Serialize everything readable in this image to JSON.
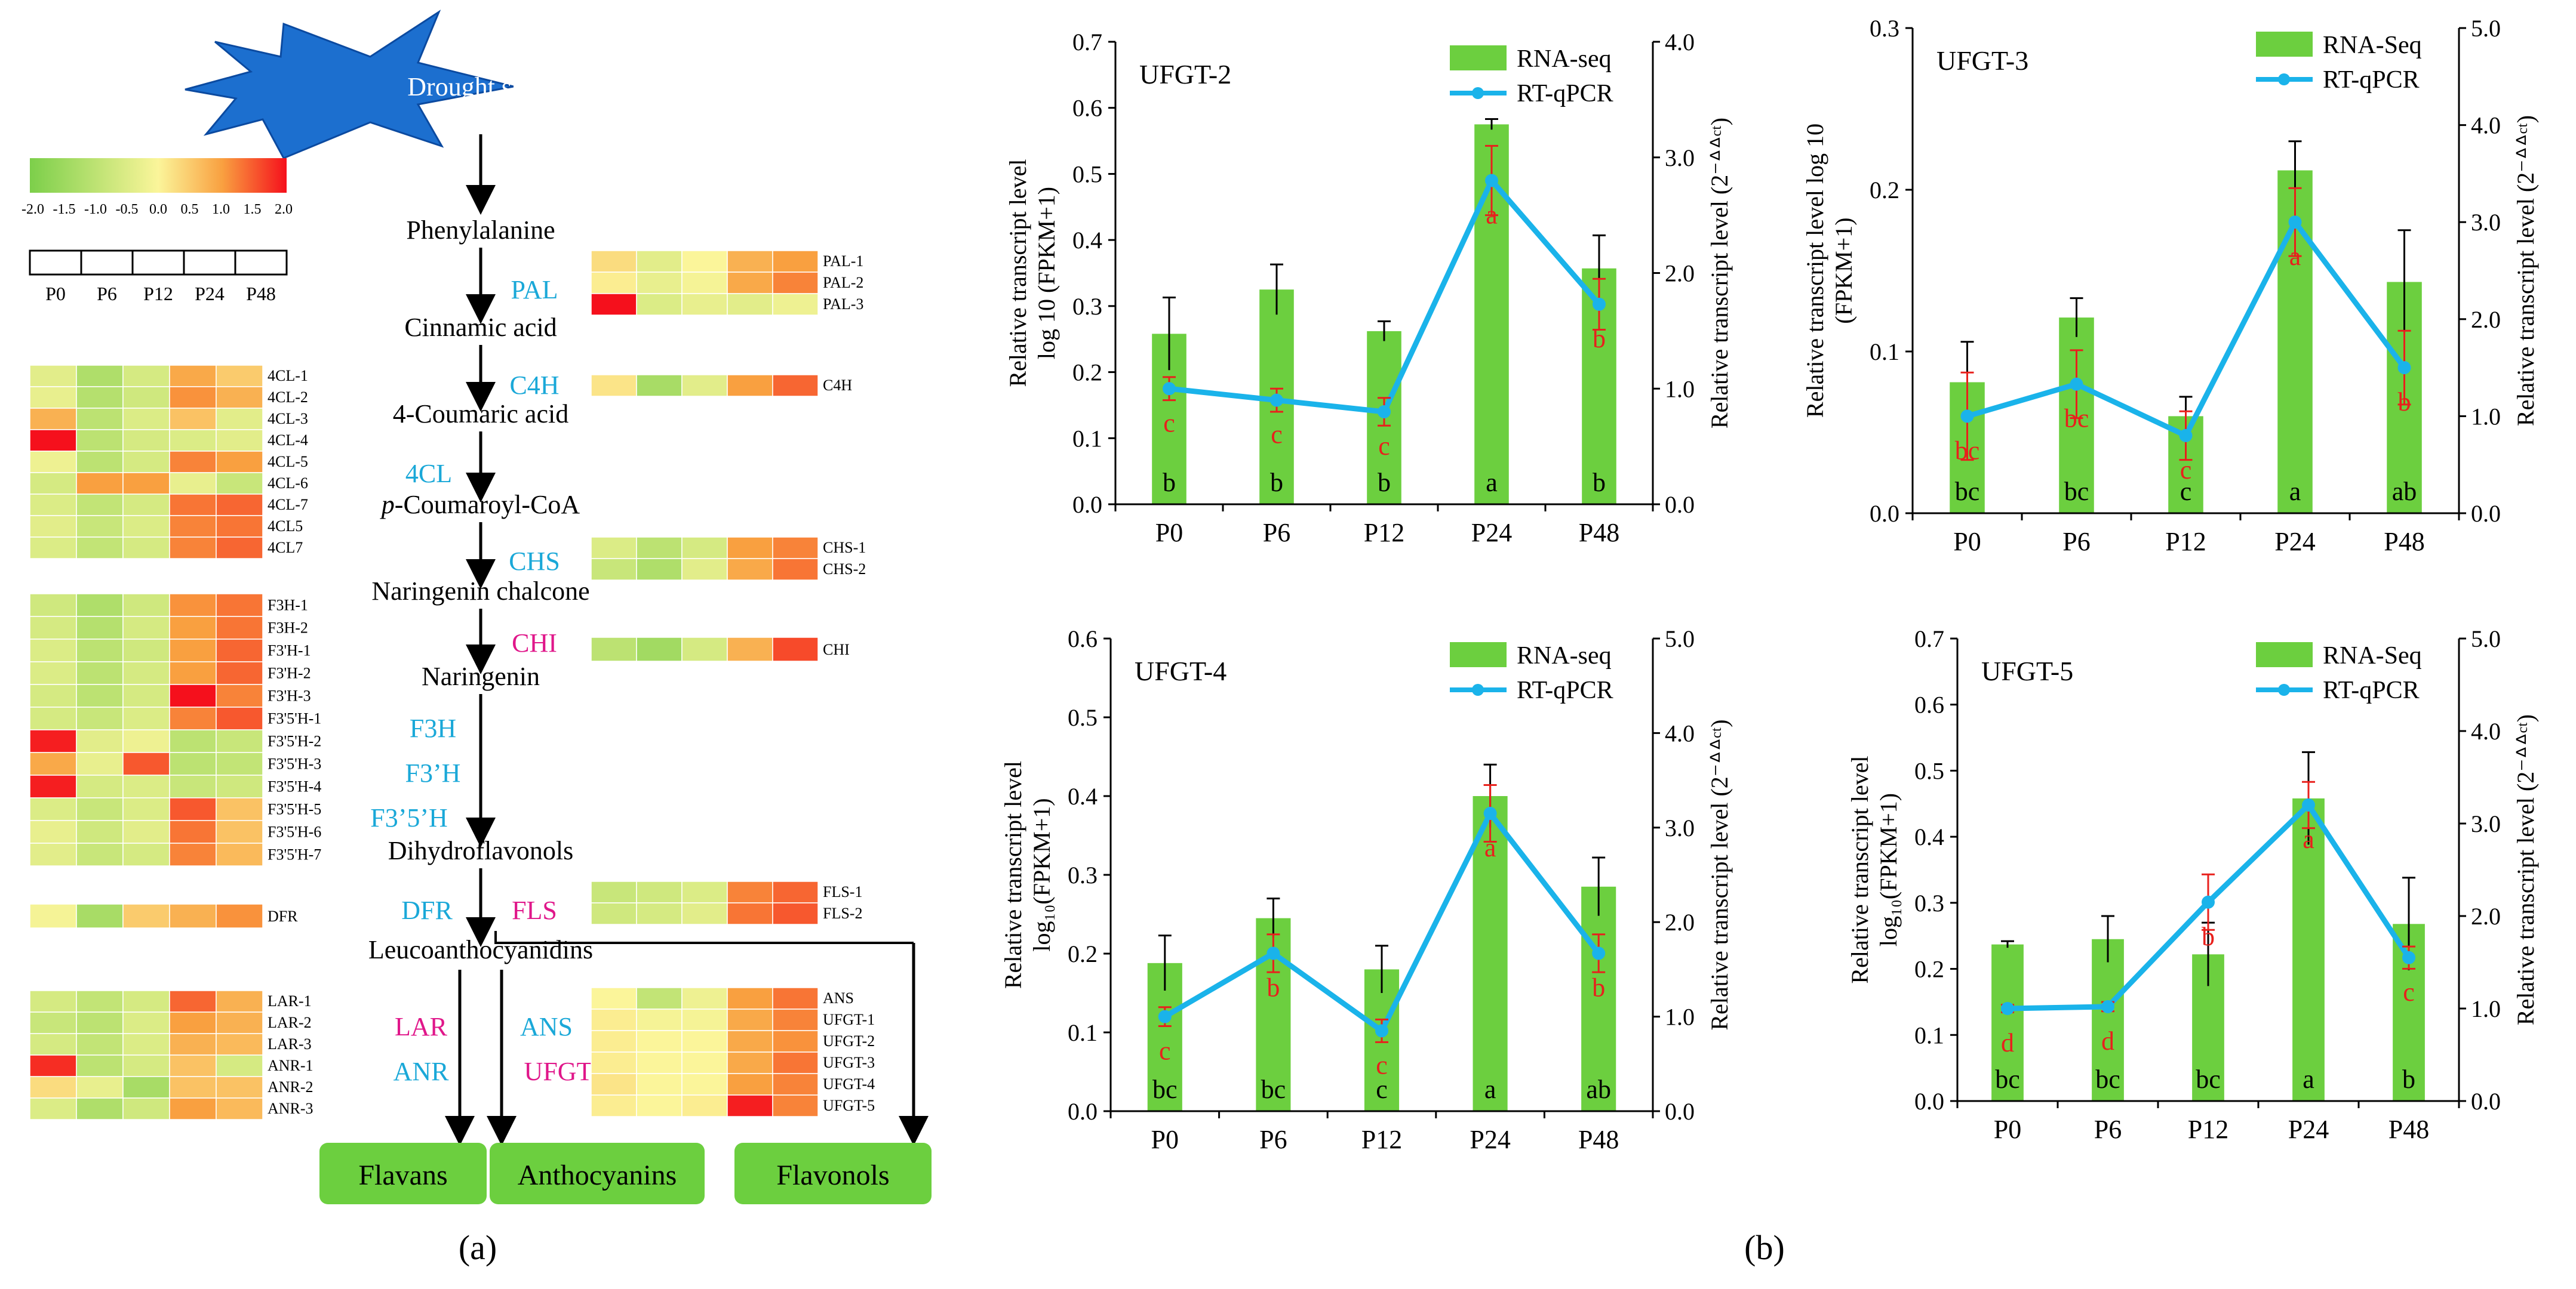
{
  "colors": {
    "bar": "#6ccf3f",
    "line": "#1ab3ea",
    "letter_red": "#e8201c",
    "pathway_box": "#6ccf3f",
    "cyan_label": "#1aa8d8",
    "magenta_label": "#e0178a",
    "star": "#1c6fcf"
  },
  "panel_a": {
    "label": "(a)",
    "stress": "Drought stress",
    "scale_ticks": [
      "-2.0",
      "-1.5",
      "-1.0",
      "-0.5",
      "0.0",
      "0.5",
      "1.0",
      "1.5",
      "2.0"
    ],
    "stages": [
      "P0",
      "P6",
      "P12",
      "P24",
      "P48"
    ],
    "metabolites": [
      "Phenylalanine",
      "Cinnamic acid",
      "4-Coumaric acid",
      "p-Coumaroyl-CoA",
      "Naringenin chalcone",
      "Naringenin",
      "Dihydroflavonols",
      "Leucoanthocyanidins"
    ],
    "enzymes": [
      "PAL",
      "C4H",
      "4CL",
      "CHS",
      "CHI",
      "F3H",
      "F3’H",
      "F3’5’H",
      "DFR",
      "FLS",
      "LAR",
      "ANS",
      "ANR",
      "UFGT"
    ],
    "products": [
      "Flavans",
      "Anthocyanins",
      "Flavonols"
    ],
    "heatmaps": [
      {
        "genes": [
          "PAL-1",
          "PAL-2",
          "PAL-3"
        ],
        "values": [
          [
            0.3,
            -0.4,
            0.0,
            0.8,
            1.0
          ],
          [
            0.1,
            -0.3,
            -0.1,
            0.9,
            1.2
          ],
          [
            2.0,
            -0.5,
            -0.3,
            -0.4,
            -0.2
          ]
        ]
      },
      {
        "genes": [
          "C4H"
        ],
        "values": [
          [
            0.2,
            -1.3,
            -0.4,
            1.0,
            1.4
          ]
        ]
      },
      {
        "genes": [
          "4CL-1",
          "4CL-2",
          "4CL-3",
          "4CL-4",
          "4CL-5",
          "4CL-6",
          "4CL-7",
          "4CL5",
          "4CL7"
        ],
        "values": [
          [
            -0.4,
            -1.2,
            -0.6,
            0.9,
            0.5
          ],
          [
            -0.3,
            -1.1,
            -0.7,
            1.1,
            0.8
          ],
          [
            0.8,
            -1.0,
            -0.5,
            0.6,
            -0.4
          ],
          [
            2.0,
            -1.0,
            -0.6,
            -0.5,
            -0.4
          ],
          [
            -0.2,
            -1.0,
            -0.6,
            1.2,
            1.0
          ],
          [
            -0.6,
            1.0,
            1.0,
            -0.3,
            -0.8
          ],
          [
            -0.5,
            -0.9,
            -0.6,
            1.3,
            1.4
          ],
          [
            -0.4,
            -0.8,
            -0.5,
            1.2,
            1.3
          ],
          [
            -0.5,
            -0.9,
            -0.6,
            1.2,
            1.4
          ]
        ]
      },
      {
        "genes": [
          "CHS-1",
          "CHS-2"
        ],
        "values": [
          [
            -0.5,
            -1.0,
            -0.6,
            1.0,
            1.2
          ],
          [
            -0.8,
            -1.2,
            -0.4,
            0.9,
            1.3
          ]
        ]
      },
      {
        "genes": [
          "CHI"
        ],
        "values": [
          [
            -1.0,
            -1.4,
            -0.6,
            0.8,
            1.6
          ]
        ]
      },
      {
        "genes": [
          "F3H-1",
          "F3H-2",
          "F3'H-1",
          "F3'H-2",
          "F3'H-3",
          "F3'5'H-1",
          "F3'5'H-2",
          "F3'5'H-3",
          "F3'5'H-4",
          "F3'5'H-5",
          "F3'5'H-6",
          "F3'5'H-7"
        ],
        "values": [
          [
            -0.7,
            -1.2,
            -0.7,
            1.1,
            1.3
          ],
          [
            -0.6,
            -1.1,
            -0.6,
            1.0,
            1.3
          ],
          [
            -0.5,
            -1.0,
            -0.7,
            1.0,
            1.4
          ],
          [
            -0.5,
            -1.0,
            -0.6,
            1.0,
            1.4
          ],
          [
            -0.6,
            -1.0,
            -0.6,
            2.0,
            1.2
          ],
          [
            -0.6,
            -0.8,
            -0.5,
            1.2,
            1.5
          ],
          [
            1.9,
            -0.4,
            -0.2,
            -1.0,
            -0.8
          ],
          [
            0.9,
            -0.3,
            1.5,
            -1.0,
            -0.9
          ],
          [
            1.9,
            -0.6,
            -0.5,
            -0.8,
            -0.7
          ],
          [
            -0.5,
            -0.8,
            -0.5,
            1.5,
            0.6
          ],
          [
            -0.3,
            -0.7,
            -0.4,
            1.3,
            0.6
          ],
          [
            -0.4,
            -0.8,
            -0.6,
            1.2,
            0.7
          ]
        ]
      },
      {
        "genes": [
          "DFR"
        ],
        "values": [
          [
            -0.1,
            -1.3,
            0.5,
            0.8,
            1.1
          ]
        ]
      },
      {
        "genes": [
          "FLS-1",
          "FLS-2"
        ],
        "values": [
          [
            -0.8,
            -0.7,
            -0.5,
            1.2,
            1.4
          ],
          [
            -0.7,
            -0.6,
            -0.4,
            1.3,
            1.5
          ]
        ]
      },
      {
        "genes": [
          "LAR-1",
          "LAR-2",
          "LAR-3",
          "ANR-1",
          "ANR-2",
          "ANR-3"
        ],
        "values": [
          [
            -0.6,
            -0.9,
            -0.6,
            1.4,
            0.8
          ],
          [
            -0.8,
            -1.0,
            -0.5,
            1.0,
            0.8
          ],
          [
            -0.6,
            -0.9,
            -0.5,
            0.8,
            0.7
          ],
          [
            1.8,
            -1.0,
            -0.6,
            0.6,
            -0.6
          ],
          [
            0.3,
            -0.3,
            -1.3,
            0.6,
            0.6
          ],
          [
            -0.5,
            -1.2,
            -0.7,
            1.0,
            0.7
          ]
        ]
      },
      {
        "genes": [
          "ANS",
          "UFGT-1",
          "UFGT-2",
          "UFGT-3",
          "UFGT-4",
          "UFGT-5"
        ],
        "values": [
          [
            0.0,
            -0.9,
            -0.2,
            1.0,
            1.3
          ],
          [
            0.1,
            -0.1,
            -0.1,
            0.9,
            1.2
          ],
          [
            0.1,
            0.0,
            0.0,
            0.9,
            1.1
          ],
          [
            0.1,
            0.0,
            0.0,
            0.9,
            1.3
          ],
          [
            0.2,
            0.0,
            0.0,
            1.0,
            1.2
          ],
          [
            0.1,
            0.0,
            0.1,
            1.9,
            1.2
          ]
        ]
      }
    ]
  },
  "panel_b": {
    "label": "(b)"
  },
  "chart_data": [
    {
      "type": "bar+line",
      "title": "UFGT-2",
      "categories": [
        "P0",
        "P6",
        "P12",
        "P24",
        "P48"
      ],
      "series": [
        {
          "name": "RNA-seq",
          "axis": "left",
          "values": [
            0.258,
            0.325,
            0.262,
            0.575,
            0.357
          ],
          "errors": [
            0.055,
            0.038,
            0.015,
            0.008,
            0.05
          ],
          "letters": [
            "b",
            "b",
            "b",
            "a",
            "b"
          ]
        },
        {
          "name": "RT-qPCR",
          "axis": "right",
          "values": [
            1.0,
            0.9,
            0.8,
            2.8,
            1.73
          ],
          "errors": [
            0.1,
            0.1,
            0.12,
            0.3,
            0.22
          ],
          "letters": [
            "c",
            "c",
            "c",
            "a",
            "b"
          ]
        }
      ],
      "ylabel": "Relative transcript level",
      "ylabel2": "log 10 (FPKM+1)",
      "y2label": "Relative transcript  level (2⁻ᐞᐞᶜᵗ)",
      "ylim": [
        0,
        0.7
      ],
      "yticks": [
        "0.0",
        "0.1",
        "0.2",
        "0.3",
        "0.4",
        "0.5",
        "0.6",
        "0.7"
      ],
      "y2lim": [
        0,
        4.0
      ],
      "y2ticks": [
        "0.0",
        "1.0",
        "2.0",
        "3.0",
        "4.0"
      ]
    },
    {
      "type": "bar+line",
      "title": "UFGT-3",
      "categories": [
        "P0",
        "P6",
        "P12",
        "P24",
        "P48"
      ],
      "series": [
        {
          "name": "RNA-Seq",
          "axis": "left",
          "values": [
            0.081,
            0.121,
            0.06,
            0.212,
            0.143
          ],
          "errors": [
            0.025,
            0.012,
            0.012,
            0.018,
            0.032
          ],
          "letters": [
            "bc",
            "bc",
            "c",
            "a",
            "ab"
          ]
        },
        {
          "name": "RT-qPCR",
          "axis": "right",
          "values": [
            1.0,
            1.33,
            0.8,
            3.0,
            1.5
          ],
          "errors": [
            0.45,
            0.35,
            0.25,
            0.35,
            0.38
          ],
          "letters": [
            "bc",
            "bc",
            "c",
            "a",
            "b"
          ]
        }
      ],
      "ylabel": "Relative transcript level log 10",
      "ylabel2": "(FPKM+1)",
      "y2label": "Relative transcript  level (2⁻ᐞᐞᶜᵗ)",
      "ylim": [
        0,
        0.3
      ],
      "yticks": [
        "0.0",
        "0.1",
        "0.2",
        "0.3"
      ],
      "y2lim": [
        0,
        5.0
      ],
      "y2ticks": [
        "0.0",
        "1.0",
        "2.0",
        "3.0",
        "4.0",
        "5.0"
      ]
    },
    {
      "type": "bar+line",
      "title": "UFGT-4",
      "categories": [
        "P0",
        "P6",
        "P12",
        "P24",
        "P48"
      ],
      "series": [
        {
          "name": "RNA-seq",
          "axis": "left",
          "values": [
            0.188,
            0.245,
            0.18,
            0.4,
            0.285
          ],
          "errors": [
            0.035,
            0.025,
            0.03,
            0.04,
            0.037
          ],
          "letters": [
            "bc",
            "bc",
            "c",
            "a",
            "ab"
          ]
        },
        {
          "name": "RT-qPCR",
          "axis": "right",
          "values": [
            1.0,
            1.67,
            0.85,
            3.15,
            1.67
          ],
          "errors": [
            0.1,
            0.2,
            0.12,
            0.3,
            0.2
          ],
          "letters": [
            "c",
            "b",
            "c",
            "a",
            "b"
          ]
        }
      ],
      "ylabel": "Relative transcript level",
      "ylabel2": "log₁₀(FPKM+1)",
      "y2label": "Relative transcript  level (2⁻ᐞᐞᶜᵗ)",
      "ylim": [
        0,
        0.6
      ],
      "yticks": [
        "0.0",
        "0.1",
        "0.2",
        "0.3",
        "0.4",
        "0.5",
        "0.6"
      ],
      "y2lim": [
        0,
        5.0
      ],
      "y2ticks": [
        "0.0",
        "1.0",
        "2.0",
        "3.0",
        "4.0",
        "5.0"
      ]
    },
    {
      "type": "bar+line",
      "title": "UFGT-5",
      "categories": [
        "P0",
        "P6",
        "P12",
        "P24",
        "P48"
      ],
      "series": [
        {
          "name": "RNA-Seq",
          "axis": "left",
          "values": [
            0.237,
            0.245,
            0.222,
            0.458,
            0.268
          ],
          "errors": [
            0.005,
            0.035,
            0.048,
            0.07,
            0.07
          ],
          "letters": [
            "bc",
            "bc",
            "bc",
            "a",
            "b"
          ]
        },
        {
          "name": "RT-qPCR",
          "axis": "right",
          "values": [
            1.0,
            1.02,
            2.15,
            3.2,
            1.55
          ],
          "errors": [
            0.04,
            0.05,
            0.3,
            0.25,
            0.12
          ],
          "letters": [
            "d",
            "d",
            "b",
            "a",
            "c"
          ]
        }
      ],
      "ylabel": "Relative transcript level",
      "ylabel2": "log₁₀(FPKM+1)",
      "y2label": "Relative transcript  level (2⁻ᐞᐞᶜᵗ)",
      "ylim": [
        0,
        0.7
      ],
      "yticks": [
        "0.0",
        "0.1",
        "0.2",
        "0.3",
        "0.4",
        "0.5",
        "0.6",
        "0.7"
      ],
      "y2lim": [
        0,
        5.0
      ],
      "y2ticks": [
        "0.0",
        "1.0",
        "2.0",
        "3.0",
        "4.0",
        "5.0"
      ]
    }
  ]
}
